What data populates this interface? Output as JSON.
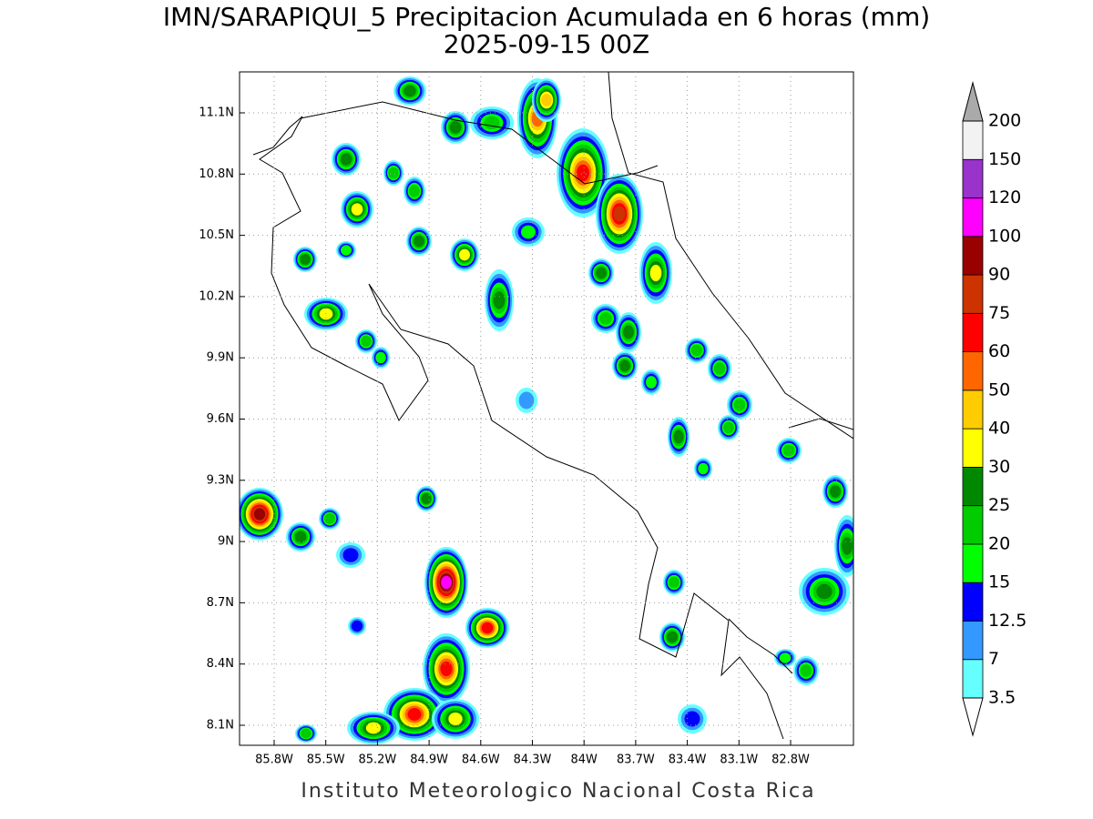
{
  "title": "IMN/SARAPIQUI_5 Precipitacion Acumulada en 6 horas (mm)",
  "subtitle": "2025-09-15 00Z",
  "credit": "Instituto Meteorologico Nacional Costa Rica",
  "lat_ticks": [
    "11.1N",
    "10.8N",
    "10.5N",
    "10.2N",
    "9.9N",
    "9.6N",
    "9.3N",
    "9N",
    "8.7N",
    "8.4N",
    "8.1N"
  ],
  "lon_ticks": [
    "85.8W",
    "85.5W",
    "85.2W",
    "84.9W",
    "84.6W",
    "84.3W",
    "84W",
    "83.7W",
    "83.4W",
    "83.1W",
    "82.8W"
  ],
  "colorbar": {
    "levels": [
      3.5,
      7,
      12.5,
      15,
      20,
      25,
      30,
      40,
      50,
      60,
      75,
      90,
      100,
      120,
      150,
      200
    ],
    "colors": [
      "#66ffff",
      "#3399ff",
      "#0000ff",
      "#00ff00",
      "#00cc00",
      "#008800",
      "#ffff00",
      "#ffcc00",
      "#ff6600",
      "#ff0000",
      "#cc3300",
      "#990000",
      "#ff00ff",
      "#9933cc",
      "#f2f2f2"
    ],
    "over_color": "#aaaaaa",
    "under_color": "#ffffff"
  }
}
